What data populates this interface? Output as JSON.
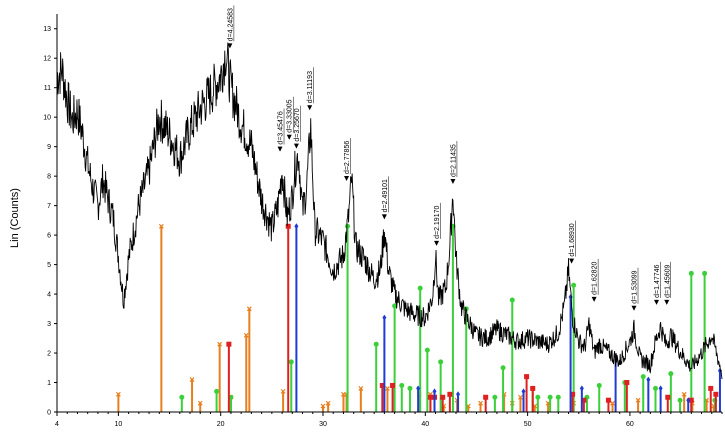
{
  "chart_data": {
    "type": "line",
    "title": "",
    "xlabel": "",
    "ylabel": "Lin (Counts)",
    "xlim": [
      4,
      69
    ],
    "ylim": [
      0,
      13.5
    ],
    "x_ticks": [
      4,
      10,
      20,
      30,
      40,
      50,
      60
    ],
    "y_ticks": [
      0,
      1,
      2,
      3,
      4,
      5,
      6,
      7,
      8,
      9,
      10,
      11,
      12,
      13
    ],
    "profile": {
      "x": [
        4.0,
        4.5,
        5.0,
        5.5,
        6.0,
        6.5,
        7.0,
        7.5,
        8.0,
        8.5,
        9.0,
        9.5,
        10.0,
        10.5,
        11.0,
        12.0,
        13.0,
        14.0,
        15.0,
        16.0,
        17.0,
        18.0,
        19.0,
        20.0,
        20.5,
        21.0,
        22.0,
        23.0,
        24.0,
        25.0,
        25.6,
        26.0,
        26.5,
        27.0,
        27.2,
        27.6,
        28.0,
        28.4,
        28.8,
        29.2,
        30.0,
        31.0,
        32.0,
        32.5,
        32.8,
        33.2,
        34.0,
        35.0,
        35.6,
        36.0,
        36.4,
        37.0,
        38.0,
        39.0,
        40.0,
        40.7,
        41.0,
        41.3,
        42.0,
        42.4,
        42.7,
        43.0,
        43.5,
        44.0,
        45.0,
        46.0,
        47.0,
        48.0,
        49.0,
        50.0,
        51.0,
        52.0,
        53.0,
        53.6,
        54.0,
        54.4,
        55.0,
        55.6,
        56.0,
        56.5,
        57.0,
        58.0,
        59.0,
        60.0,
        60.4,
        61.0,
        62.0,
        62.5,
        63.0,
        63.5,
        64.0,
        65.0,
        66.0,
        67.0,
        68.0,
        69.0
      ],
      "y": [
        11.4,
        11.6,
        10.6,
        9.9,
        10.2,
        9.4,
        8.4,
        7.6,
        7.0,
        7.9,
        7.2,
        6.6,
        5.3,
        3.8,
        5.2,
        7.0,
        8.2,
        10.0,
        9.4,
        8.6,
        9.6,
        10.3,
        10.8,
        11.4,
        12.2,
        11.0,
        9.8,
        9.0,
        7.2,
        6.2,
        7.0,
        8.2,
        6.6,
        7.3,
        8.1,
        8.8,
        6.8,
        7.6,
        9.7,
        6.2,
        5.8,
        4.8,
        5.3,
        6.6,
        7.9,
        5.6,
        5.2,
        4.5,
        4.8,
        6.2,
        4.8,
        4.0,
        3.5,
        3.3,
        3.2,
        3.9,
        5.3,
        3.8,
        4.2,
        5.6,
        7.5,
        5.2,
        3.6,
        3.2,
        2.6,
        2.5,
        2.8,
        2.6,
        2.4,
        2.5,
        2.4,
        2.3,
        2.7,
        3.6,
        4.8,
        3.2,
        2.4,
        2.2,
        3.0,
        2.0,
        2.3,
        2.0,
        1.7,
        2.4,
        2.8,
        1.8,
        1.6,
        2.4,
        2.9,
        2.3,
        2.6,
        2.0,
        1.5,
        2.0,
        2.6,
        1.3
      ]
    },
    "peak_labels": [
      {
        "x": 20.9,
        "y": 12.3,
        "label": "d=4.24583"
      },
      {
        "x": 25.8,
        "y": 8.8,
        "label": "d=3.45476"
      },
      {
        "x": 26.7,
        "y": 9.2,
        "label": "d=3.33005"
      },
      {
        "x": 27.4,
        "y": 8.9,
        "label": "d=3.25670"
      },
      {
        "x": 28.7,
        "y": 10.2,
        "label": "d=3.11193"
      },
      {
        "x": 32.3,
        "y": 7.8,
        "label": "d=2.77856"
      },
      {
        "x": 36.0,
        "y": 6.5,
        "label": "d=2.49101"
      },
      {
        "x": 41.1,
        "y": 5.6,
        "label": "d=2.19170"
      },
      {
        "x": 42.7,
        "y": 7.7,
        "label": "d=2.11435"
      },
      {
        "x": 54.3,
        "y": 5.0,
        "label": "d=1.68930"
      },
      {
        "x": 56.5,
        "y": 3.7,
        "label": "d=1.62820"
      },
      {
        "x": 60.4,
        "y": 3.4,
        "label": "d=1.53099"
      },
      {
        "x": 62.6,
        "y": 3.6,
        "label": "d=1.47746"
      },
      {
        "x": 63.6,
        "y": 3.6,
        "label": "d=1.45609"
      }
    ],
    "reference_series": [
      {
        "color": "#e87f1e",
        "marker": "x",
        "x": [
          10.0,
          14.2,
          17.2,
          18.0,
          19.9,
          21.0,
          22.5,
          22.8,
          26.1,
          30.0,
          30.5,
          32.0,
          32.3,
          33.7,
          36.3,
          39.4,
          40.5,
          41.8,
          43.1,
          44.2,
          45.4,
          47.7,
          48.5,
          49.3,
          50.7,
          52.0,
          54.5,
          58.3,
          60.8,
          65.3,
          66.1,
          67.5,
          68.2
        ],
        "y": [
          0.6,
          6.3,
          1.1,
          0.3,
          2.3,
          0.5,
          2.6,
          3.5,
          0.7,
          0.2,
          0.3,
          0.6,
          0.6,
          0.8,
          0.8,
          0.6,
          0.6,
          0.2,
          0.4,
          0.2,
          0.3,
          0.6,
          0.3,
          0.5,
          0.2,
          0.3,
          0.3,
          0.3,
          0.4,
          0.6,
          0.3,
          0.4,
          0.2
        ]
      },
      {
        "color": "#3ad03a",
        "marker": "o",
        "x": [
          16.2,
          19.6,
          21.0,
          26.9,
          32.4,
          35.2,
          37.0,
          37.7,
          38.5,
          39.5,
          40.2,
          41.5,
          42.7,
          44.0,
          46.8,
          47.6,
          48.5,
          50.5,
          51.0,
          52.2,
          53.0,
          54.5,
          55.8,
          57.0,
          59.5,
          61.3,
          62.5,
          64.0,
          64.9,
          66.0,
          67.3,
          68.3
        ],
        "y": [
          0.5,
          0.7,
          0.5,
          1.7,
          6.3,
          2.3,
          3.6,
          0.9,
          0.8,
          4.2,
          2.1,
          1.7,
          6.3,
          3.5,
          0.5,
          1.5,
          3.8,
          0.8,
          0.5,
          0.5,
          0.5,
          4.3,
          0.5,
          0.9,
          1.0,
          1.2,
          0.8,
          1.3,
          0.4,
          4.7,
          4.7,
          0.4
        ]
      },
      {
        "color": "#e02020",
        "marker": "s",
        "x": [
          20.8,
          26.6,
          35.8,
          36.8,
          40.5,
          40.9,
          41.7,
          42.4,
          45.9,
          49.9,
          50.5,
          54.4,
          55.5,
          57.9,
          59.7,
          63.7,
          66.0,
          67.9,
          68.4
        ],
        "y": [
          2.3,
          6.3,
          0.9,
          0.9,
          0.5,
          0.5,
          0.5,
          0.6,
          0.5,
          1.2,
          0.8,
          0.6,
          0.4,
          0.4,
          1.0,
          0.5,
          0.4,
          0.8,
          0.6
        ]
      },
      {
        "color": "#1f3ad6",
        "marker": "d",
        "x": [
          27.4,
          36.0,
          39.3,
          40.9,
          43.2,
          49.6,
          54.2,
          55.3,
          58.6,
          61.8,
          63.0,
          65.7,
          68.8
        ],
        "y": [
          6.3,
          3.2,
          0.8,
          0.7,
          0.6,
          0.7,
          3.9,
          0.8,
          1.9,
          1.1,
          0.8,
          0.4,
          1.4
        ]
      }
    ]
  }
}
